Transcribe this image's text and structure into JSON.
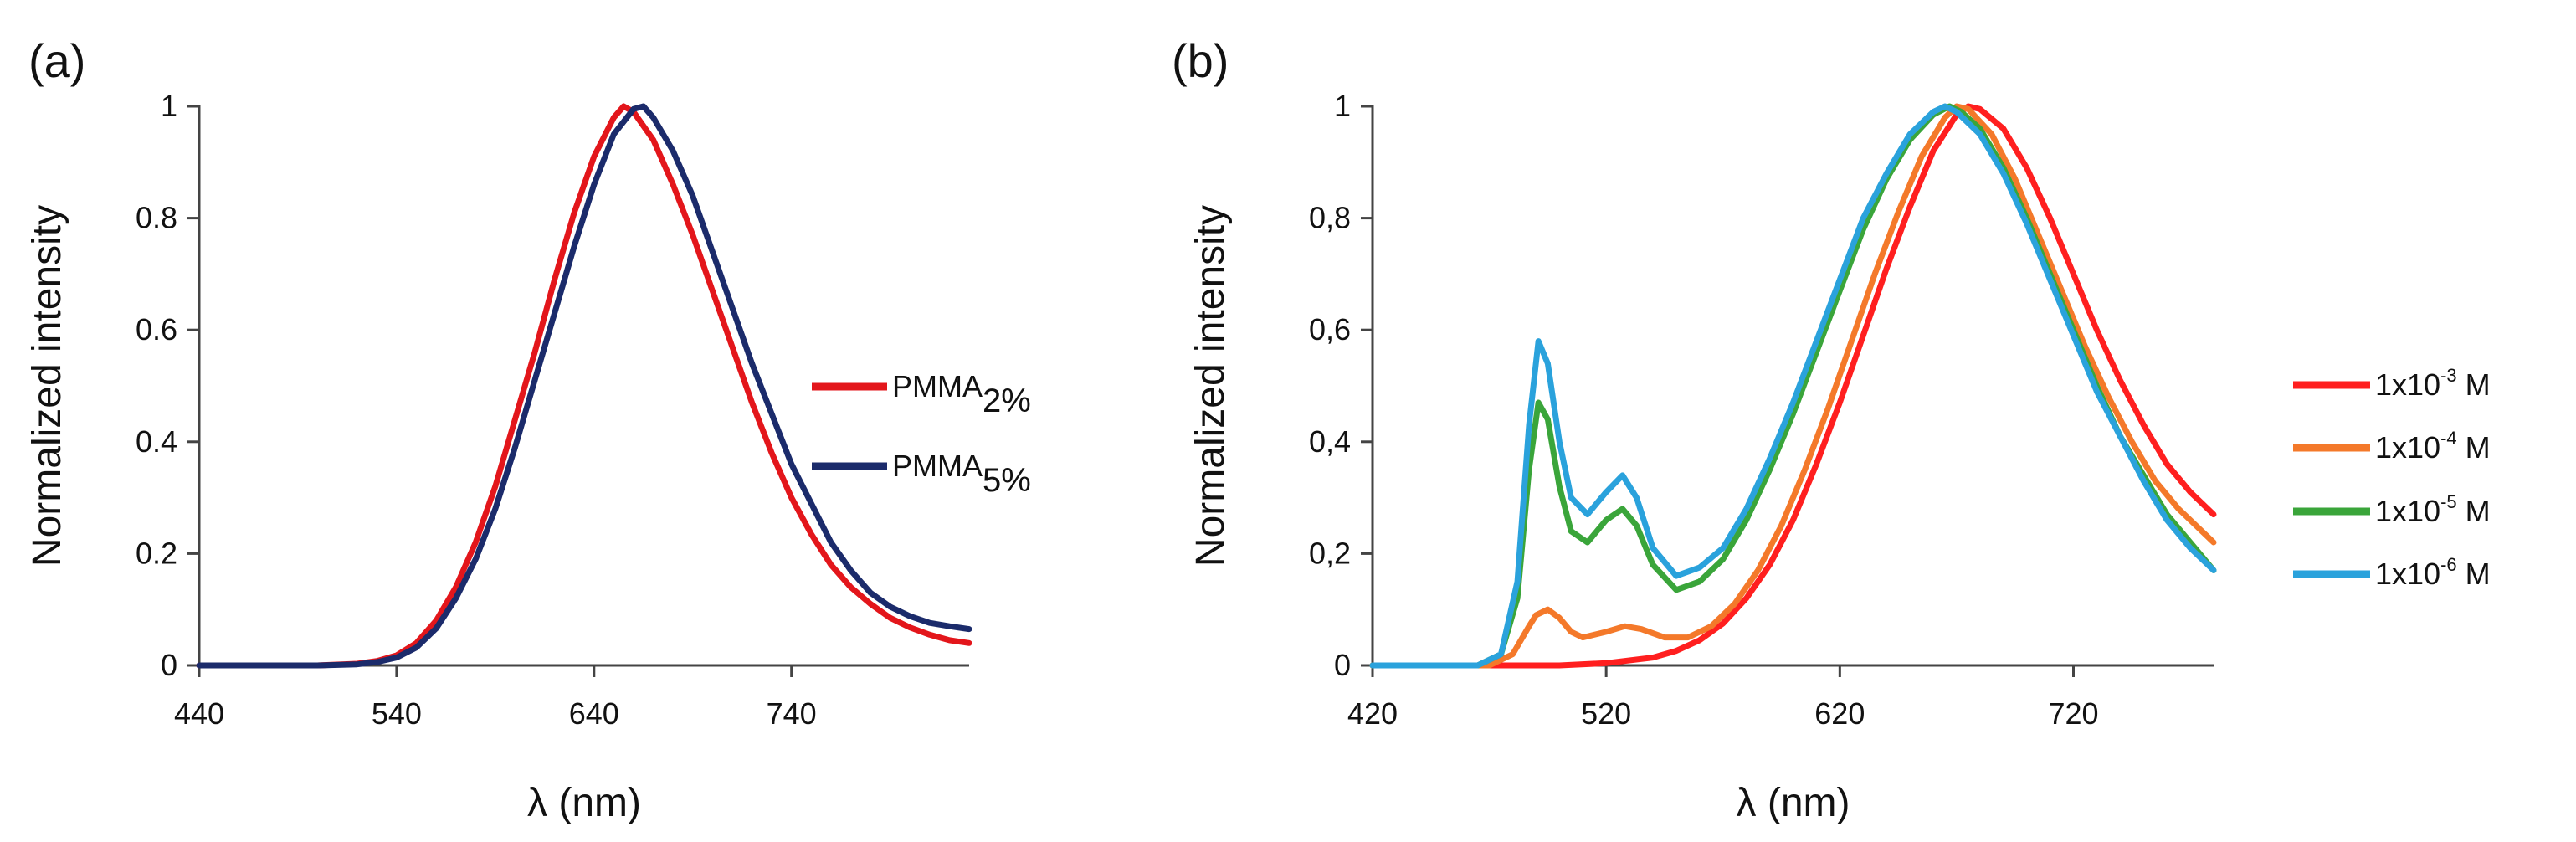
{
  "chart_data": [
    {
      "panel_label": "(a)",
      "type": "line",
      "xlabel": "λ (nm)",
      "ylabel": "Normalized intensity",
      "xlim": [
        440,
        830
      ],
      "ylim": [
        0,
        1
      ],
      "xticks": [
        440,
        540,
        640,
        740
      ],
      "yticks": [
        0,
        0.2,
        0.4,
        0.6,
        0.8,
        1
      ],
      "ytick_labels": [
        "0",
        "0.2",
        "0.4",
        "0.6",
        "0.8",
        "1"
      ],
      "legend_position": "right",
      "series": [
        {
          "name": "PMMA",
          "subscript": "2%",
          "color": "#e3161b",
          "x": [
            440,
            500,
            520,
            530,
            540,
            550,
            560,
            570,
            580,
            590,
            600,
            610,
            620,
            630,
            640,
            650,
            655,
            660,
            670,
            680,
            690,
            700,
            710,
            720,
            730,
            740,
            750,
            760,
            770,
            780,
            790,
            800,
            810,
            820,
            830
          ],
          "y": [
            0,
            0,
            0.003,
            0.008,
            0.018,
            0.04,
            0.08,
            0.14,
            0.22,
            0.32,
            0.44,
            0.56,
            0.69,
            0.81,
            0.91,
            0.98,
            1.0,
            0.99,
            0.94,
            0.86,
            0.77,
            0.67,
            0.57,
            0.47,
            0.38,
            0.3,
            0.235,
            0.18,
            0.14,
            0.11,
            0.085,
            0.068,
            0.055,
            0.045,
            0.04
          ]
        },
        {
          "name": "PMMA",
          "subscript": "5%",
          "color": "#1b2b6b",
          "x": [
            440,
            500,
            520,
            530,
            540,
            550,
            560,
            570,
            580,
            590,
            600,
            610,
            620,
            630,
            640,
            650,
            660,
            665,
            670,
            680,
            690,
            700,
            710,
            720,
            730,
            740,
            750,
            760,
            770,
            780,
            790,
            800,
            810,
            820,
            830
          ],
          "y": [
            0,
            0,
            0.002,
            0.006,
            0.014,
            0.032,
            0.066,
            0.12,
            0.19,
            0.28,
            0.39,
            0.51,
            0.63,
            0.75,
            0.86,
            0.95,
            0.995,
            1.0,
            0.98,
            0.92,
            0.84,
            0.74,
            0.64,
            0.54,
            0.45,
            0.36,
            0.29,
            0.22,
            0.17,
            0.13,
            0.105,
            0.088,
            0.076,
            0.07,
            0.065
          ]
        }
      ]
    },
    {
      "panel_label": "(b)",
      "type": "line",
      "xlabel": "λ (nm)",
      "ylabel": "Normalized intensity",
      "xlim": [
        420,
        780
      ],
      "ylim": [
        0,
        1
      ],
      "xticks": [
        420,
        520,
        620,
        720
      ],
      "yticks": [
        0,
        0.2,
        0.4,
        0.6,
        0.8,
        1
      ],
      "ytick_labels": [
        "0",
        "0,2",
        "0,4",
        "0,6",
        "0,8",
        "1"
      ],
      "legend_position": "right",
      "series": [
        {
          "name": "1x10",
          "exponent": "-3",
          "unit": " M",
          "color": "#ff1f1f",
          "x": [
            420,
            500,
            520,
            540,
            550,
            560,
            570,
            580,
            590,
            600,
            610,
            620,
            630,
            640,
            650,
            660,
            670,
            675,
            680,
            690,
            700,
            710,
            720,
            730,
            740,
            750,
            760,
            770,
            780
          ],
          "y": [
            0,
            0,
            0.004,
            0.014,
            0.026,
            0.045,
            0.075,
            0.12,
            0.18,
            0.26,
            0.36,
            0.47,
            0.59,
            0.71,
            0.82,
            0.92,
            0.985,
            1.0,
            0.995,
            0.96,
            0.89,
            0.8,
            0.7,
            0.6,
            0.51,
            0.43,
            0.36,
            0.31,
            0.27
          ]
        },
        {
          "name": "1x10",
          "exponent": "-4",
          "unit": " M",
          "color": "#f4792a",
          "x": [
            420,
            470,
            480,
            487,
            490,
            495,
            500,
            505,
            510,
            520,
            528,
            535,
            545,
            555,
            565,
            575,
            585,
            595,
            605,
            615,
            625,
            635,
            645,
            655,
            665,
            670,
            675,
            685,
            695,
            705,
            715,
            725,
            735,
            745,
            755,
            765,
            780
          ],
          "y": [
            0,
            0,
            0.02,
            0.07,
            0.09,
            0.1,
            0.085,
            0.06,
            0.05,
            0.06,
            0.07,
            0.065,
            0.05,
            0.05,
            0.07,
            0.11,
            0.17,
            0.25,
            0.35,
            0.46,
            0.58,
            0.7,
            0.81,
            0.91,
            0.98,
            1.0,
            0.995,
            0.95,
            0.87,
            0.77,
            0.67,
            0.57,
            0.48,
            0.4,
            0.33,
            0.28,
            0.22
          ]
        },
        {
          "name": "1x10",
          "exponent": "-5",
          "unit": " M",
          "color": "#3aa53a",
          "x": [
            420,
            465,
            475,
            482,
            487,
            491,
            495,
            500,
            505,
            512,
            520,
            527,
            533,
            540,
            550,
            560,
            570,
            580,
            590,
            600,
            610,
            620,
            630,
            640,
            650,
            660,
            667,
            672,
            680,
            690,
            700,
            710,
            720,
            730,
            740,
            750,
            760,
            770,
            780
          ],
          "y": [
            0,
            0,
            0.02,
            0.12,
            0.35,
            0.47,
            0.44,
            0.32,
            0.24,
            0.22,
            0.26,
            0.28,
            0.25,
            0.18,
            0.135,
            0.15,
            0.19,
            0.26,
            0.35,
            0.45,
            0.56,
            0.67,
            0.78,
            0.87,
            0.94,
            0.985,
            1.0,
            0.99,
            0.96,
            0.89,
            0.8,
            0.7,
            0.6,
            0.5,
            0.41,
            0.34,
            0.27,
            0.22,
            0.17
          ]
        },
        {
          "name": "1x10",
          "exponent": "-6",
          "unit": " M",
          "color": "#2aa2dc",
          "x": [
            420,
            465,
            475,
            482,
            487,
            491,
            495,
            500,
            505,
            512,
            520,
            527,
            533,
            540,
            550,
            560,
            570,
            580,
            590,
            600,
            610,
            620,
            630,
            640,
            650,
            660,
            665,
            670,
            680,
            690,
            700,
            710,
            720,
            730,
            740,
            750,
            760,
            770,
            780
          ],
          "y": [
            0,
            0,
            0.02,
            0.15,
            0.43,
            0.58,
            0.54,
            0.4,
            0.3,
            0.27,
            0.31,
            0.34,
            0.3,
            0.21,
            0.16,
            0.175,
            0.21,
            0.28,
            0.37,
            0.47,
            0.58,
            0.69,
            0.8,
            0.88,
            0.95,
            0.99,
            1.0,
            0.99,
            0.95,
            0.88,
            0.79,
            0.69,
            0.59,
            0.49,
            0.41,
            0.33,
            0.26,
            0.21,
            0.17
          ]
        }
      ]
    }
  ]
}
